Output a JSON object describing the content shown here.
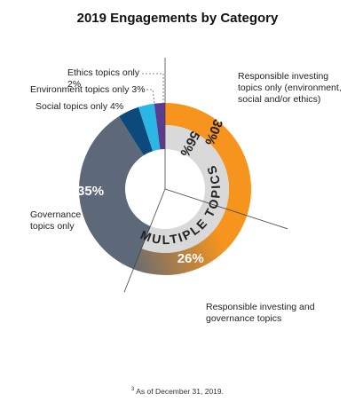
{
  "chart_data": {
    "type": "donut",
    "title": "2019 Engagements by Category",
    "categories": [
      "Responsible investing topics only (environment, social and/or ethics)",
      "Responsible investing and governance topics",
      "Governance topics only",
      "Social topics only",
      "Environment topics only",
      "Ethics topics only"
    ],
    "values": [
      30,
      26,
      35,
      4,
      3,
      2
    ],
    "value_labels": [
      "30%",
      "26%",
      "35%",
      "4%",
      "3%",
      "2%"
    ],
    "colors": [
      "#f7941d",
      [
        "#f7941d",
        "#5d6878"
      ],
      "#5d6878",
      "#0d4a7c",
      "#2bb7e6",
      "#5a3b8c"
    ],
    "inner": {
      "label": "MULTIPLE TOPICS",
      "value": 56,
      "value_label": "56%",
      "color": "#d9d9d9"
    },
    "footnote_marker": "3",
    "footnote": "As of December 31, 2019."
  }
}
